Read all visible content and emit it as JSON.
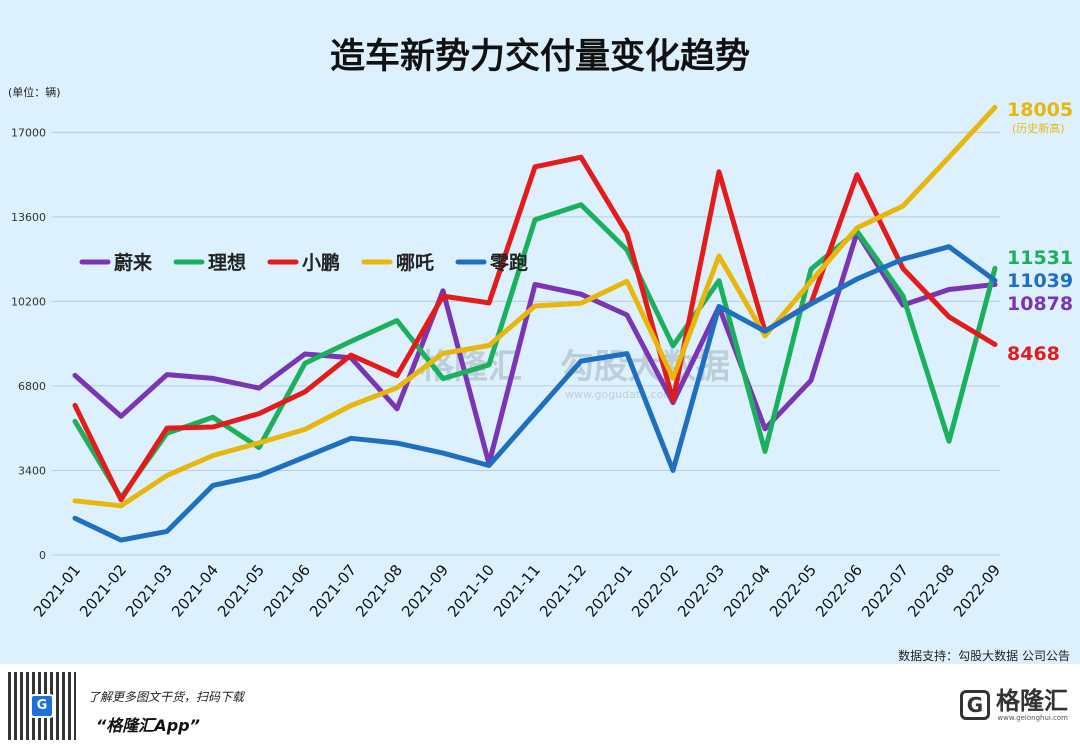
{
  "chart_data": {
    "type": "line",
    "title": "造车新势力交付量变化趋势",
    "unit_label": "(单位：辆)",
    "y_ticks": [
      0,
      3400,
      6800,
      10200,
      13600,
      17000
    ],
    "ylim": [
      0,
      18300
    ],
    "categories": [
      "2021-01",
      "2021-02",
      "2021-03",
      "2021-04",
      "2021-05",
      "2021-06",
      "2021-07",
      "2021-08",
      "2021-09",
      "2021-10",
      "2021-11",
      "2021-12",
      "2022-01",
      "2022-02",
      "2022-03",
      "2022-04",
      "2022-05",
      "2022-06",
      "2022-07",
      "2022-08",
      "2022-09"
    ],
    "series": [
      {
        "name": "蔚来",
        "color": "#7a35b4",
        "values": [
          7225,
          5578,
          7257,
          7102,
          6711,
          8083,
          7931,
          5880,
          10628,
          3667,
          10878,
          10489,
          9652,
          6131,
          9985,
          5074,
          7024,
          12961,
          10052,
          10677,
          10878
        ]
      },
      {
        "name": "理想",
        "color": "#1bb15c",
        "values": [
          5379,
          2300,
          4900,
          5539,
          4323,
          7713,
          8589,
          9433,
          7094,
          7649,
          13485,
          14087,
          12268,
          8414,
          11034,
          4167,
          11496,
          13024,
          10422,
          4571,
          11531
        ]
      },
      {
        "name": "小鹏",
        "color": "#e41b1b",
        "values": [
          6015,
          2223,
          5102,
          5147,
          5686,
          6565,
          8040,
          7214,
          10412,
          10138,
          15613,
          16000,
          12922,
          6225,
          15414,
          9002,
          10125,
          15295,
          11524,
          9578,
          8468
        ]
      },
      {
        "name": "哪吒",
        "color": "#e8b70e",
        "values": [
          2180,
          1980,
          3200,
          4000,
          4508,
          5052,
          6011,
          6723,
          8107,
          8428,
          10013,
          10127,
          11009,
          7117,
          12026,
          8813,
          11005,
          13157,
          14037,
          16000,
          18005
        ]
      },
      {
        "name": "零跑",
        "color": "#1e6fc0",
        "values": [
          1482,
          600,
          950,
          2800,
          3195,
          3940,
          4695,
          4500,
          4100,
          3600,
          5700,
          7800,
          8100,
          3400,
          10000,
          9000,
          10100,
          11100,
          11900,
          12400,
          11039
        ]
      }
    ],
    "end_labels": [
      {
        "series": "哪吒",
        "text": "18005",
        "note": "(历史新高)"
      },
      {
        "series": "理想",
        "text": "11531",
        "note": ""
      },
      {
        "series": "零跑",
        "text": "11039",
        "note": ""
      },
      {
        "series": "蔚来",
        "text": "10878",
        "note": ""
      },
      {
        "series": "小鹏",
        "text": "8468",
        "note": ""
      }
    ],
    "legend_position": "left-middle",
    "grid": true
  },
  "watermark": {
    "brand": "格隆汇",
    "brand2": "勾股大数据",
    "url": "www.gogudata.com"
  },
  "source_text": "数据支持：勾股大数据  公司公告",
  "footer": {
    "promo_line1": "了解更多图文干货，扫码下载",
    "promo_line2": "“格隆汇App”",
    "brand_name": "格隆汇",
    "brand_sub": "www.gelonghui.com",
    "logo_letter": "G"
  }
}
